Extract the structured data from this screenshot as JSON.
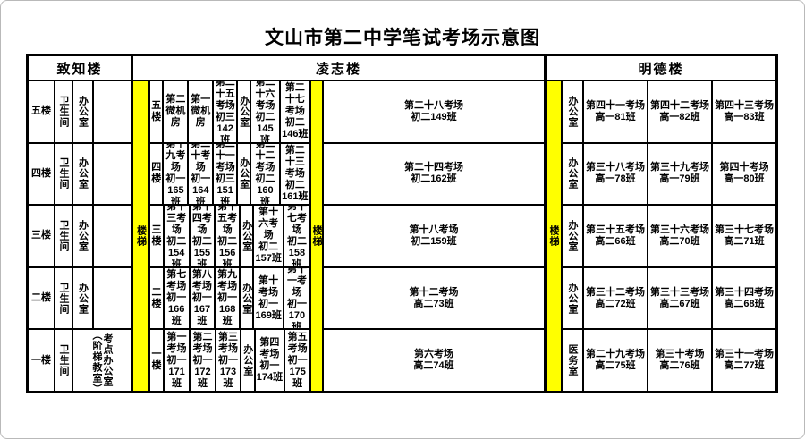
{
  "title": "文山市第二中学笔试考场示意图",
  "colors": {
    "stair_yellow": "#ffff00"
  },
  "stairs": {
    "s1": "楼梯",
    "s2": "楼梯",
    "s3": "楼梯"
  },
  "zhizhi": {
    "header": "致知楼",
    "rows": [
      {
        "floor": "五楼",
        "wc": "卫生间",
        "office": "办公室",
        "extra": ""
      },
      {
        "floor": "四楼",
        "wc": "卫生间",
        "office": "办公室",
        "extra": ""
      },
      {
        "floor": "三楼",
        "wc": "卫生间",
        "office": "办公室",
        "extra": ""
      },
      {
        "floor": "二楼",
        "wc": "卫生间",
        "office": "办公室",
        "extra": ""
      },
      {
        "floor": "一楼",
        "wc": "卫生间",
        "merged": "考点办公室（阶梯教室）"
      }
    ]
  },
  "lingzhi": {
    "header": "凌志楼",
    "office_label": "办公室",
    "rows": [
      {
        "floor": "五楼",
        "c1": [
          "第二微机房",
          ""
        ],
        "c2": [
          "第一微机房",
          ""
        ],
        "c3": [
          "第二十五考场",
          "初三142班"
        ],
        "office": "办公室",
        "c4": [
          "第二十六考场",
          "初二145班"
        ],
        "c5": [
          "第二十七考场",
          "初二146班"
        ],
        "c6": [
          "第二十八考场",
          "初二149班"
        ]
      },
      {
        "floor": "四楼",
        "c1": [
          "第十九考场",
          "初一165班"
        ],
        "c2": [
          "第二十考场",
          "初一164班"
        ],
        "c3": [
          "第二十一考场",
          "初三151班"
        ],
        "office": "办公室",
        "c4": [
          "第二十二考场",
          "初二160班"
        ],
        "c5": [
          "第二十三考场",
          "初二161班"
        ],
        "c6": [
          "第二十四考场",
          "初二162班"
        ]
      },
      {
        "floor": "三楼",
        "c1": [
          "第十三考场",
          "初二154班"
        ],
        "c2": [
          "第十四考场",
          "初二155班"
        ],
        "c3": [
          "第十五考场",
          "初二156班"
        ],
        "office": "办公室",
        "c4": [
          "第十六考场",
          "初二157班"
        ],
        "c5": [
          "第十七考场",
          "初二158班"
        ],
        "c6": [
          "第十八考场",
          "初二159班"
        ]
      },
      {
        "floor": "二楼",
        "c1": [
          "第七考场",
          "初一166班"
        ],
        "c2": [
          "第八考场",
          "初一167班"
        ],
        "c3": [
          "第九考场",
          "初一168班"
        ],
        "office": "办公室",
        "c4": [
          "第十考场",
          "初一169班"
        ],
        "c5": [
          "第十一考场",
          "初一170班"
        ],
        "c6": [
          "第十二考场",
          "高二73班"
        ]
      },
      {
        "floor": "一楼",
        "c1": [
          "第一考场",
          "初一171班"
        ],
        "c2": [
          "第二考场",
          "初一172班"
        ],
        "c3": [
          "第三考场",
          "初一173班"
        ],
        "office": "办公室",
        "c4": [
          "第四考场",
          "初一174班"
        ],
        "c5": [
          "第五考场",
          "初一175班"
        ],
        "c6": [
          "第六考场",
          "高二74班"
        ]
      }
    ]
  },
  "mingde": {
    "header": "明德楼",
    "rows": [
      {
        "side": "办公室",
        "c1": [
          "第四十一考场",
          "高一81班"
        ],
        "c2": [
          "第四十二考场",
          "高一82班"
        ],
        "c3": [
          "第四十三考场",
          "高一83班"
        ]
      },
      {
        "side": "办公室",
        "c1": [
          "第三十八考场",
          "高一78班"
        ],
        "c2": [
          "第三十九考场",
          "高一79班"
        ],
        "c3": [
          "第四十考场",
          "高一80班"
        ]
      },
      {
        "side": "办公室",
        "c1": [
          "第三十五考场",
          "高二66班"
        ],
        "c2": [
          "第三十六考场",
          "高二70班"
        ],
        "c3": [
          "第三十七考场",
          "高二71班"
        ]
      },
      {
        "side": "办公室",
        "c1": [
          "第三十二考场",
          "高二72班"
        ],
        "c2": [
          "第三十三考场",
          "高二67班"
        ],
        "c3": [
          "第三十四考场",
          "高二68班"
        ]
      },
      {
        "side": "医务室",
        "c1": [
          "第二十九考场",
          "高二75班"
        ],
        "c2": [
          "第三十考场",
          "高二76班"
        ],
        "c3": [
          "第三十一考场",
          "高二77班"
        ]
      }
    ]
  }
}
